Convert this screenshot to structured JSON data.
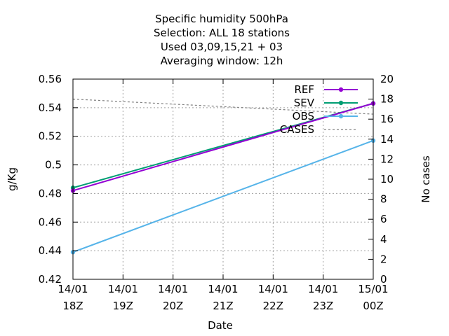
{
  "chart_data": {
    "type": "line",
    "title_lines": [
      "Specific humidity 500hPa",
      "Selection: ALL      18 stations",
      "Used  03,09,15,21 + 03",
      "Averaging window: 12h"
    ],
    "xlabel": "Date",
    "ylabel": "g/Kg",
    "y2label": "No cases",
    "x_ticks": [
      {
        "line1": "14/01",
        "line2": "18Z"
      },
      {
        "line1": "14/01",
        "line2": "19Z"
      },
      {
        "line1": "14/01",
        "line2": "20Z"
      },
      {
        "line1": "14/01",
        "line2": "21Z"
      },
      {
        "line1": "14/01",
        "line2": "22Z"
      },
      {
        "line1": "14/01",
        "line2": "23Z"
      },
      {
        "line1": "15/01",
        "line2": "00Z"
      }
    ],
    "ylim": [
      0.42,
      0.56
    ],
    "y_ticks": [
      "0.42",
      "0.44",
      "0.46",
      "0.48",
      "0.5",
      "0.52",
      "0.54",
      "0.56"
    ],
    "y2lim": [
      0,
      20
    ],
    "y2_ticks": [
      "0",
      "2",
      "4",
      "6",
      "8",
      "10",
      "12",
      "14",
      "16",
      "18",
      "20"
    ],
    "grid": true,
    "legend_position": "top-right",
    "series": [
      {
        "name": "REF",
        "color": "#9400d3",
        "axis": "y",
        "points": [
          [
            0,
            0.482
          ],
          [
            6,
            0.543
          ]
        ],
        "marker": true,
        "dashed": false
      },
      {
        "name": "SEV",
        "color": "#009e73",
        "axis": "y",
        "points": [
          [
            0,
            0.484
          ],
          [
            6,
            0.543
          ]
        ],
        "marker": true,
        "dashed": false
      },
      {
        "name": "OBS",
        "color": "#56b4e9",
        "axis": "y",
        "points": [
          [
            0,
            0.439
          ],
          [
            6,
            0.517
          ]
        ],
        "marker": true,
        "dashed": false
      },
      {
        "name": "CASES",
        "color": "#808080",
        "axis": "y2",
        "points": [
          [
            0,
            18
          ],
          [
            6,
            16.5
          ]
        ],
        "marker": false,
        "dashed": true
      }
    ]
  }
}
